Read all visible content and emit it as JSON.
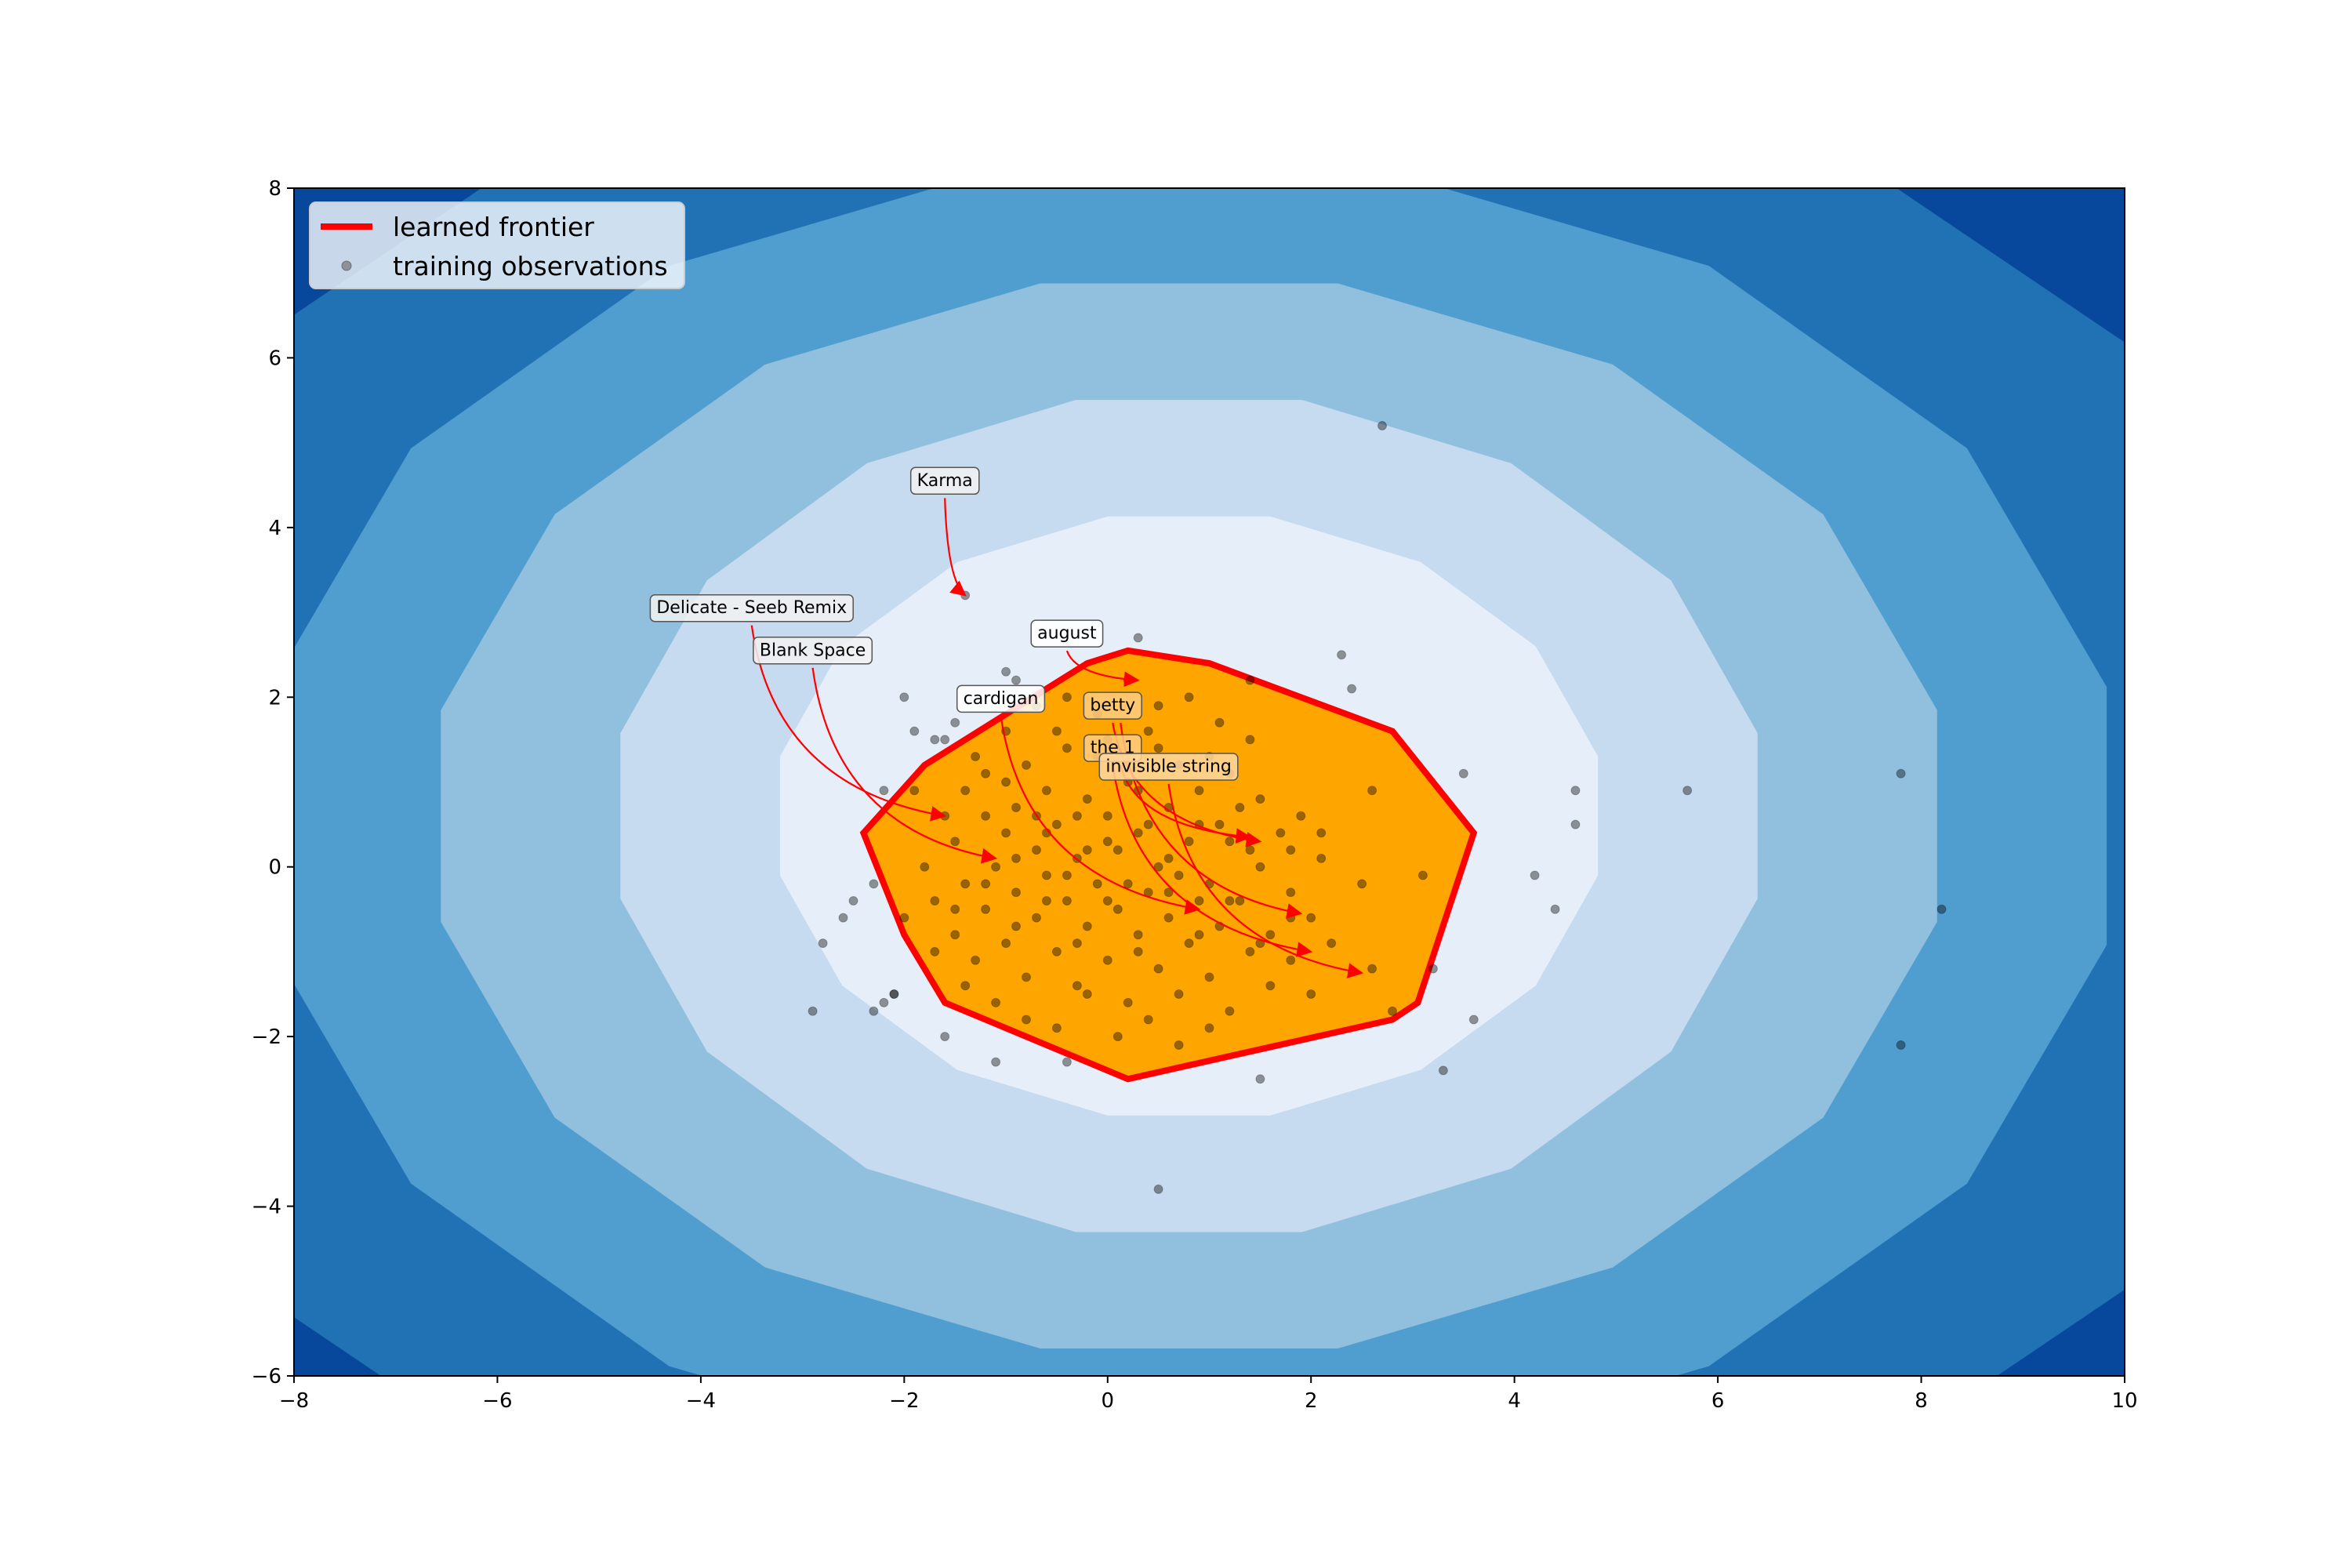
{
  "chart_data": {
    "type": "scatter",
    "title": "",
    "xlabel": "",
    "ylabel": "",
    "xlim": [
      -8,
      10
    ],
    "ylim": [
      -6,
      8
    ],
    "x_ticks": [
      -8,
      -6,
      -4,
      -2,
      0,
      2,
      4,
      6,
      8,
      10
    ],
    "y_ticks": [
      -6,
      -4,
      -2,
      0,
      2,
      4,
      6,
      8
    ],
    "x_tick_labels": [
      "−8",
      "−6",
      "−4",
      "−2",
      "0",
      "2",
      "4",
      "6",
      "8",
      "10"
    ],
    "y_tick_labels": [
      "−6",
      "−4",
      "−2",
      "0",
      "2",
      "4",
      "6",
      "8"
    ],
    "grid": false,
    "legend": {
      "placement": "top-left",
      "entries": [
        {
          "label": "learned frontier",
          "style": "line",
          "color": "#ff0000"
        },
        {
          "label": "training observations",
          "style": "marker",
          "color": "#7f7f7f"
        }
      ]
    },
    "background_contours": {
      "center": [
        0.8,
        0.6
      ],
      "colors": [
        "#e6eff9",
        "#c6dbef",
        "#91c0de",
        "#509dcf",
        "#2171b5",
        "#08489c"
      ],
      "levels": [
        {
          "rx": 4.1,
          "ry": 3.6
        },
        {
          "rx": 5.7,
          "ry": 5.0
        },
        {
          "rx": 7.5,
          "ry": 6.4
        },
        {
          "rx": 9.2,
          "ry": 7.8
        },
        {
          "rx": 11.6,
          "ry": 9.4
        }
      ]
    },
    "frontier": {
      "name": "learned frontier",
      "edge_color": "#ff0000",
      "fill_color": "#ffa500",
      "points": [
        [
          0.2,
          2.55
        ],
        [
          1.0,
          2.4
        ],
        [
          2.8,
          1.6
        ],
        [
          3.6,
          0.4
        ],
        [
          3.05,
          -1.6
        ],
        [
          2.8,
          -1.8
        ],
        [
          0.2,
          -2.5
        ],
        [
          -1.6,
          -1.6
        ],
        [
          -2.0,
          -0.8
        ],
        [
          -2.4,
          0.4
        ],
        [
          -1.8,
          1.2
        ],
        [
          -0.2,
          2.4
        ]
      ]
    },
    "observations": {
      "name": "training observations",
      "color": "#000000",
      "points": [
        [
          -1.6,
          0.6
        ],
        [
          -1.4,
          0.9
        ],
        [
          -1.2,
          1.1
        ],
        [
          -1.0,
          0.4
        ],
        [
          -0.9,
          0.7
        ],
        [
          -0.8,
          1.2
        ],
        [
          -0.7,
          0.2
        ],
        [
          -0.6,
          0.9
        ],
        [
          -0.5,
          0.5
        ],
        [
          -0.4,
          1.4
        ],
        [
          -0.3,
          0.1
        ],
        [
          -0.2,
          0.8
        ],
        [
          -0.1,
          1.3
        ],
        [
          0.0,
          0.6
        ],
        [
          0.1,
          0.2
        ],
        [
          0.2,
          1.0
        ],
        [
          0.3,
          0.4
        ],
        [
          0.4,
          1.6
        ],
        [
          0.5,
          0.0
        ],
        [
          0.6,
          0.7
        ],
        [
          0.7,
          1.2
        ],
        [
          0.8,
          0.3
        ],
        [
          0.9,
          0.9
        ],
        [
          1.0,
          -0.2
        ],
        [
          1.1,
          0.5
        ],
        [
          1.2,
          1.1
        ],
        [
          1.3,
          -0.4
        ],
        [
          1.4,
          0.2
        ],
        [
          1.5,
          0.8
        ],
        [
          1.6,
          -0.8
        ],
        [
          1.7,
          0.4
        ],
        [
          1.8,
          -0.3
        ],
        [
          1.9,
          0.6
        ],
        [
          2.0,
          -0.6
        ],
        [
          2.1,
          0.1
        ],
        [
          2.2,
          -0.9
        ],
        [
          -1.8,
          0.0
        ],
        [
          -1.7,
          -0.4
        ],
        [
          -1.5,
          -0.8
        ],
        [
          -1.4,
          -0.2
        ],
        [
          -1.3,
          -1.1
        ],
        [
          -1.2,
          -0.5
        ],
        [
          -1.1,
          0.0
        ],
        [
          -1.0,
          -0.9
        ],
        [
          -0.9,
          -0.3
        ],
        [
          -0.8,
          -1.3
        ],
        [
          -0.7,
          -0.6
        ],
        [
          -0.6,
          -0.1
        ],
        [
          -0.5,
          -1.0
        ],
        [
          -0.4,
          -0.4
        ],
        [
          -0.3,
          -1.4
        ],
        [
          -0.2,
          -0.7
        ],
        [
          -0.1,
          -0.2
        ],
        [
          0.0,
          -1.1
        ],
        [
          0.1,
          -0.5
        ],
        [
          0.2,
          -1.6
        ],
        [
          0.3,
          -0.8
        ],
        [
          0.4,
          -0.3
        ],
        [
          0.5,
          -1.2
        ],
        [
          0.6,
          -0.6
        ],
        [
          0.7,
          -1.5
        ],
        [
          0.8,
          -0.9
        ],
        [
          0.9,
          -0.4
        ],
        [
          1.0,
          -1.3
        ],
        [
          1.1,
          -0.7
        ],
        [
          1.2,
          -1.7
        ],
        [
          1.4,
          -1.0
        ],
        [
          1.6,
          -1.4
        ],
        [
          1.8,
          -1.1
        ],
        [
          2.0,
          -1.5
        ],
        [
          -1.9,
          0.9
        ],
        [
          -1.6,
          1.5
        ],
        [
          -1.3,
          1.3
        ],
        [
          -1.0,
          1.6
        ],
        [
          -0.7,
          1.9
        ],
        [
          -0.4,
          2.0
        ],
        [
          -0.1,
          1.8
        ],
        [
          0.2,
          2.2
        ],
        [
          0.5,
          1.9
        ],
        [
          0.8,
          2.0
        ],
        [
          1.1,
          1.7
        ],
        [
          1.4,
          1.5
        ],
        [
          -2.0,
          -0.6
        ],
        [
          -1.7,
          -1.0
        ],
        [
          -1.4,
          -1.4
        ],
        [
          -1.1,
          -1.6
        ],
        [
          -0.8,
          -1.8
        ],
        [
          -0.5,
          -1.9
        ],
        [
          -0.2,
          -1.5
        ],
        [
          0.1,
          -2.0
        ],
        [
          0.4,
          -1.8
        ],
        [
          0.7,
          -2.1
        ],
        [
          1.0,
          -1.9
        ],
        [
          -1.5,
          0.3
        ],
        [
          -1.2,
          0.6
        ],
        [
          -0.9,
          0.1
        ],
        [
          -0.6,
          0.4
        ],
        [
          -0.3,
          0.6
        ],
        [
          0.0,
          0.3
        ],
        [
          0.3,
          0.9
        ],
        [
          0.6,
          0.1
        ],
        [
          0.9,
          0.5
        ],
        [
          1.2,
          0.3
        ],
        [
          1.5,
          0.0
        ],
        [
          1.8,
          0.2
        ],
        [
          2.1,
          0.4
        ],
        [
          -1.5,
          -0.5
        ],
        [
          -1.2,
          -0.2
        ],
        [
          -0.9,
          -0.7
        ],
        [
          -0.6,
          -0.4
        ],
        [
          -0.3,
          -0.9
        ],
        [
          0.0,
          -0.4
        ],
        [
          0.3,
          -1.0
        ],
        [
          0.6,
          -0.3
        ],
        [
          0.9,
          -0.8
        ],
        [
          1.2,
          -0.4
        ],
        [
          1.5,
          -0.9
        ],
        [
          1.8,
          -0.6
        ],
        [
          -1.0,
          1.0
        ],
        [
          -0.5,
          1.6
        ],
        [
          0.0,
          1.5
        ],
        [
          0.5,
          1.4
        ],
        [
          1.0,
          1.3
        ],
        [
          -0.2,
          0.2
        ],
        [
          0.2,
          -0.2
        ],
        [
          0.4,
          0.5
        ],
        [
          -0.4,
          -0.1
        ],
        [
          0.7,
          -0.1
        ],
        [
          -0.7,
          0.6
        ],
        [
          1.3,
          0.7
        ],
        [
          -2.3,
          -0.2
        ],
        [
          -2.2,
          -1.6
        ],
        [
          -2.1,
          -1.5
        ],
        [
          -2.3,
          -1.7
        ],
        [
          -2.5,
          -0.4
        ],
        [
          -2.6,
          -0.6
        ],
        [
          -2.8,
          -0.9
        ],
        [
          -2.9,
          -1.7
        ],
        [
          -1.6,
          -2.0
        ],
        [
          -1.1,
          -2.3
        ],
        [
          -0.4,
          -2.3
        ],
        [
          -2.2,
          0.9
        ],
        [
          -2.0,
          2.0
        ],
        [
          -1.9,
          1.6
        ],
        [
          -1.7,
          1.5
        ],
        [
          -1.5,
          1.7
        ],
        [
          -1.0,
          2.3
        ],
        [
          -0.9,
          2.2
        ],
        [
          0.3,
          2.7
        ],
        [
          2.3,
          2.5
        ],
        [
          2.4,
          2.1
        ],
        [
          1.4,
          2.2
        ],
        [
          2.6,
          0.9
        ],
        [
          2.5,
          -0.2
        ],
        [
          2.6,
          -1.2
        ],
        [
          2.8,
          -1.7
        ],
        [
          3.1,
          -0.1
        ],
        [
          3.2,
          -1.2
        ],
        [
          3.3,
          -2.4
        ],
        [
          3.6,
          -1.8
        ],
        [
          3.5,
          1.1
        ],
        [
          4.2,
          -0.1
        ],
        [
          4.4,
          -0.5
        ],
        [
          4.6,
          0.5
        ],
        [
          4.6,
          0.9
        ],
        [
          5.7,
          0.9
        ],
        [
          7.8,
          1.1
        ],
        [
          8.2,
          -0.5
        ],
        [
          7.8,
          -2.1
        ],
        [
          1.5,
          -2.5
        ],
        [
          0.5,
          -3.8
        ],
        [
          2.7,
          5.2
        ],
        [
          -1.4,
          3.2
        ],
        [
          -2.1,
          -1.5
        ]
      ]
    },
    "annotations": [
      {
        "label": "Karma",
        "text_xy": [
          -1.6,
          4.55
        ],
        "target": [
          -1.4,
          3.2
        ],
        "box_color": "#f2f2f2"
      },
      {
        "label": "Delicate - Seeb Remix",
        "text_xy": [
          -3.5,
          3.05
        ],
        "target": [
          -1.6,
          0.6
        ],
        "box_color": "#f2f2f2"
      },
      {
        "label": "Blank Space",
        "text_xy": [
          -2.9,
          2.55
        ],
        "target": [
          -1.1,
          0.1
        ],
        "box_color": "#f2f2f2"
      },
      {
        "label": "august",
        "text_xy": [
          -0.4,
          2.75
        ],
        "target": [
          0.3,
          2.2
        ],
        "box_color": "#ffffff"
      },
      {
        "label": "cardigan",
        "text_xy": [
          -1.05,
          1.98
        ],
        "target": [
          0.9,
          -0.5
        ],
        "box_color": "#ffffff"
      },
      {
        "label": "betty",
        "text_xy": [
          0.05,
          1.9
        ],
        "target": [
          1.5,
          0.3
        ],
        "box_color": "#ffcc80"
      },
      {
        "label": "the 1",
        "text_xy": [
          0.05,
          1.4
        ],
        "target": [
          2.0,
          -1.0
        ],
        "box_color": "#ffcc80"
      },
      {
        "label": "invisible string",
        "text_xy": [
          0.6,
          1.18
        ],
        "target": [
          2.5,
          -1.25
        ],
        "box_color": "#ffd7a0"
      }
    ],
    "extra_arrow_targets": [
      [
        1.9,
        -0.55
      ],
      [
        1.4,
        0.35
      ]
    ]
  }
}
